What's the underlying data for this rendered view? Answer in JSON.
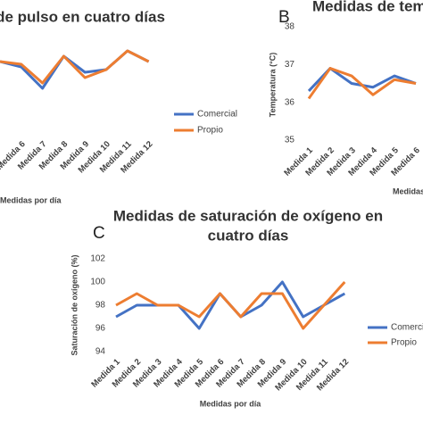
{
  "chart_data": [
    {
      "type": "line",
      "title": "de pulso en cuatro días",
      "xlabel": "Medidas por día",
      "categories": [
        null,
        "Medida 6",
        "Medida 7",
        "Medida 8",
        "Medida 9",
        "Medida 10",
        "Medida 11",
        "Medida 12"
      ],
      "series": [
        {
          "name": "Comercial",
          "color": "#4472c4",
          "values": [
            87,
            85,
            77,
            89,
            83,
            84,
            91,
            87
          ]
        },
        {
          "name": "Propio",
          "color": "#ed7d31",
          "values": [
            87,
            86,
            79,
            89,
            81,
            84,
            91,
            87
          ]
        }
      ],
      "ylim": [
        60,
        100
      ]
    },
    {
      "type": "line",
      "panel_label": "B",
      "title": "Medidas de tem",
      "xlabel": "Medidas",
      "ylabel": "Temperatura (°C)",
      "categories": [
        "Medida 1",
        "Medida 2",
        "Medida 3",
        "Medida 4",
        "Medida 5",
        "Medida 6"
      ],
      "series": [
        {
          "name": "Comercial",
          "color": "#4472c4",
          "values": [
            36.3,
            36.9,
            36.5,
            36.4,
            36.7,
            36.5
          ]
        },
        {
          "name": "Propio",
          "color": "#ed7d31",
          "values": [
            36.1,
            36.9,
            36.7,
            36.2,
            36.6,
            36.5
          ]
        }
      ],
      "ylim": [
        35,
        38
      ],
      "yticks": [
        35,
        36,
        37,
        38
      ]
    },
    {
      "type": "line",
      "panel_label": "C",
      "title": [
        "Medidas de saturación de oxígeno en",
        "cuatro días"
      ],
      "xlabel": "Medidas por día",
      "ylabel": "Saturación de oxígeno (%)",
      "categories": [
        "Medida 1",
        "Medida 2",
        "Medida 3",
        "Medida 4",
        "Medida 5",
        "Medida 6",
        "Medida 7",
        "Medida 8",
        "Medida 9",
        "Medida 10",
        "Medida 11",
        "Medida 12"
      ],
      "series": [
        {
          "name": "Comercial",
          "color": "#4472c4",
          "values": [
            97,
            98,
            98,
            98,
            96,
            99,
            97,
            98,
            100,
            97,
            98,
            99
          ]
        },
        {
          "name": "Propio",
          "color": "#ed7d31",
          "values": [
            98,
            99,
            98,
            98,
            97,
            99,
            97,
            99,
            99,
            96,
            98,
            100
          ]
        }
      ],
      "ylim": [
        94,
        102
      ],
      "yticks": [
        94,
        96,
        98,
        100,
        102
      ]
    }
  ]
}
